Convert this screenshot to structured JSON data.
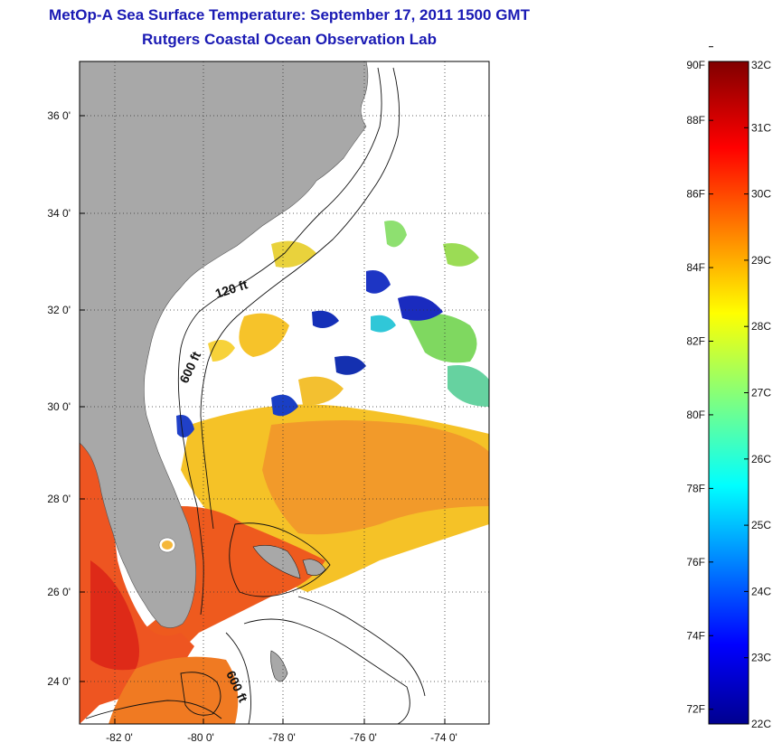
{
  "title": "MetOp-A Sea Surface Temperature:  September 17, 2011 1500 GMT",
  "subtitle": "Rutgers Coastal Ocean Observation Lab",
  "map": {
    "lon_ticks": [
      "-82 0'",
      "-80 0'",
      "-78 0'",
      "-76 0'",
      "-74 0'"
    ],
    "lat_ticks": [
      "36 0'",
      "34 0'",
      "32 0'",
      "30 0'",
      "28 0'",
      "26 0'",
      "24 0'"
    ],
    "contour_labels": [
      "120 ft",
      "600 ft",
      "600 ft"
    ],
    "colors": {
      "land": "#a8a8a8",
      "cloud": "#ffffff",
      "contour": "#111111"
    }
  },
  "colorbar": {
    "fahrenheit_labels": [
      "90F",
      "88F",
      "86F",
      "84F",
      "82F",
      "80F",
      "78F",
      "76F",
      "74F",
      "72F"
    ],
    "celsius_labels": [
      "32C",
      "31C",
      "30C",
      "29C",
      "28C",
      "27C",
      "26C",
      "25C",
      "24C",
      "23C",
      "22C"
    ],
    "min_c": 22,
    "max_c": 32
  }
}
